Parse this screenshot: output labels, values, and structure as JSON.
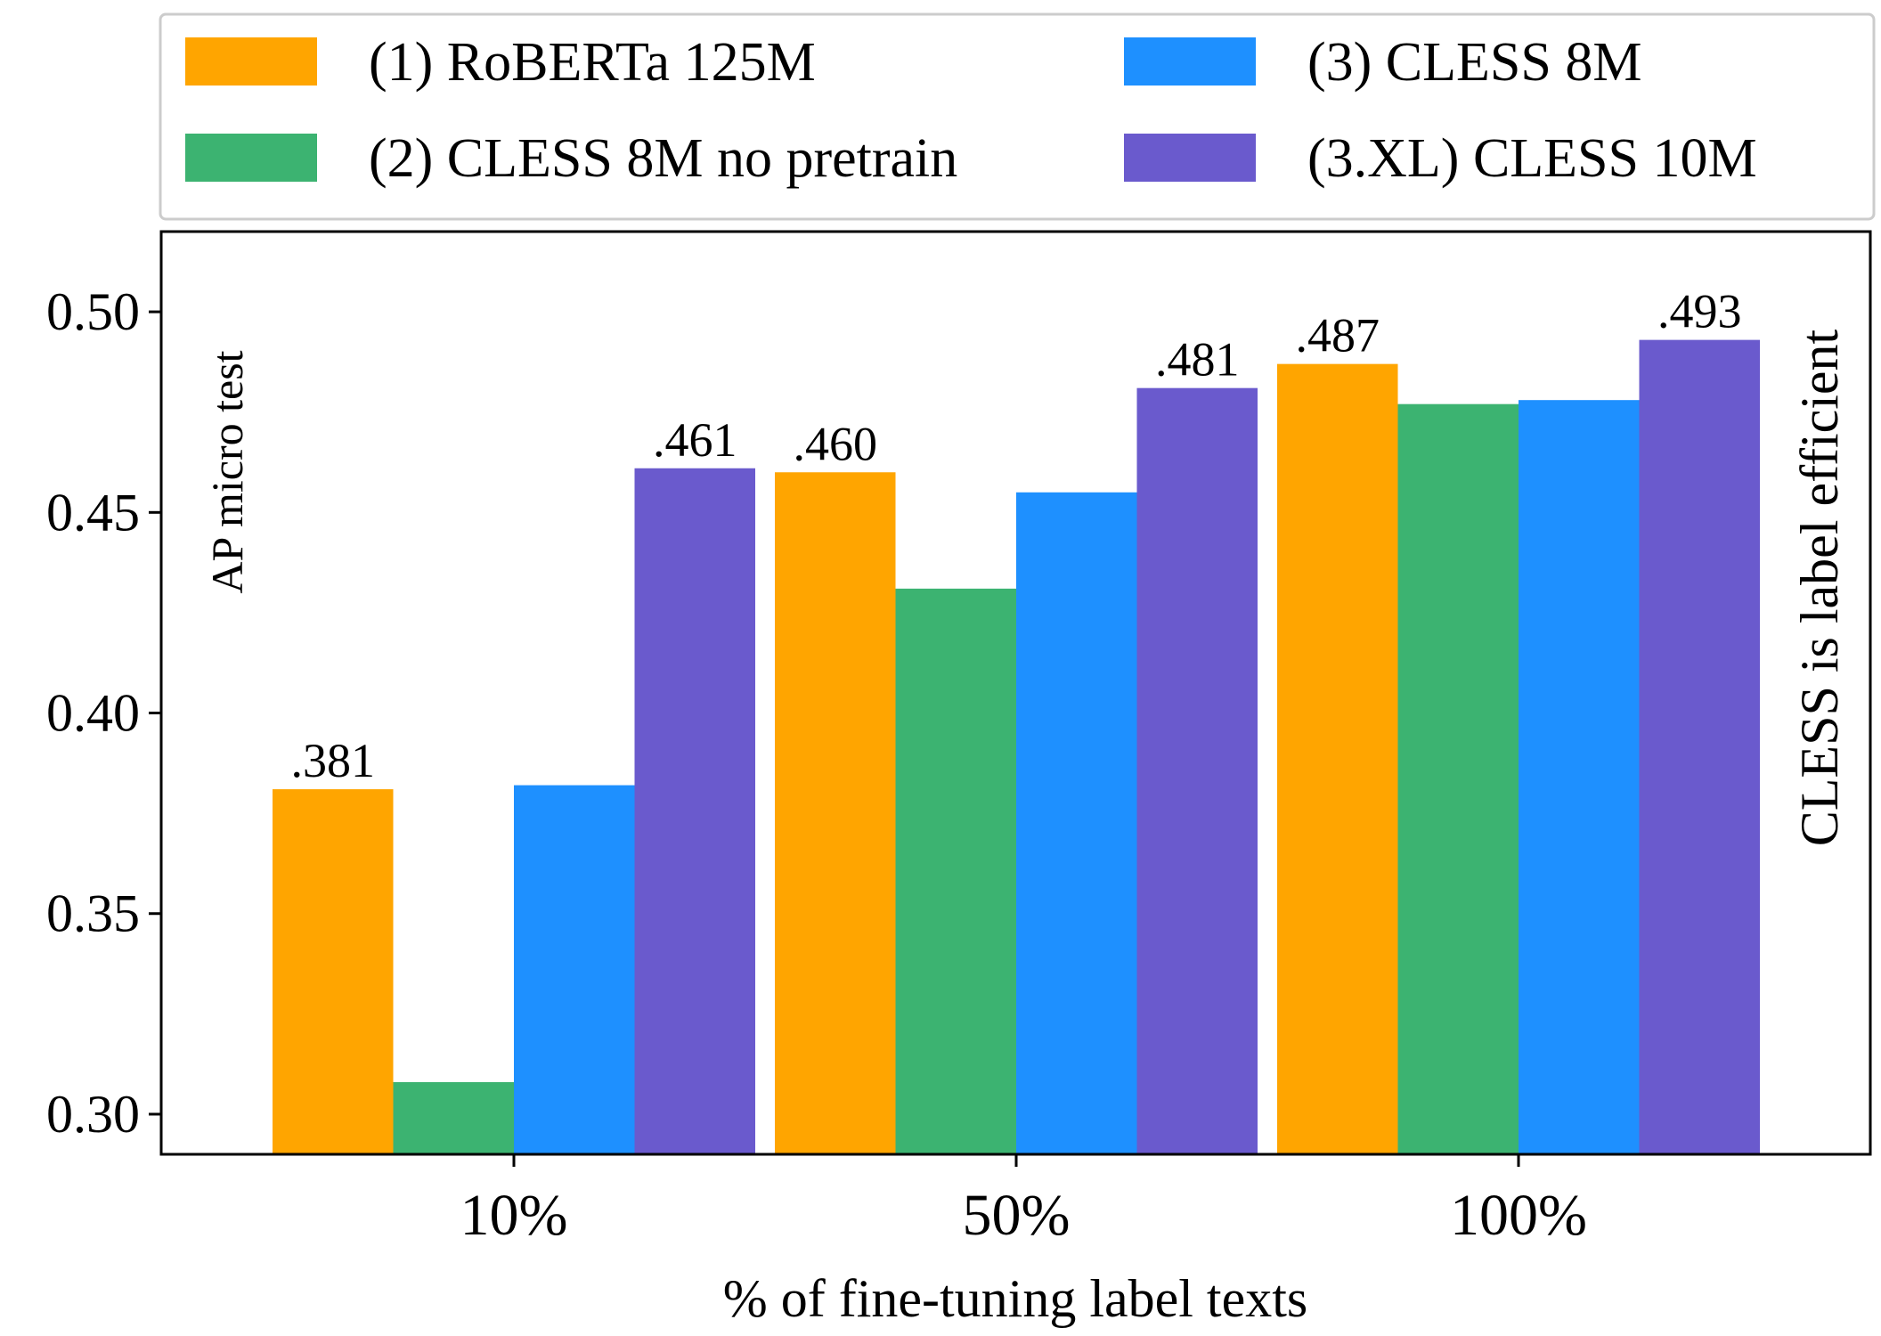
{
  "chart_data": {
    "type": "bar",
    "title": "",
    "xlabel": "% of fine-tuning label texts",
    "ylabel": "",
    "ylim": [
      0.29,
      0.52
    ],
    "yticks": [
      0.3,
      0.35,
      0.4,
      0.45,
      0.5
    ],
    "ytick_labels": [
      "0.30",
      "0.35",
      "0.40",
      "0.45",
      "0.50"
    ],
    "categories": [
      "10%",
      "50%",
      "100%"
    ],
    "series": [
      {
        "name": "(1) RoBERTa 125M",
        "color": "#ffa500",
        "values": [
          0.381,
          0.46,
          0.487
        ]
      },
      {
        "name": "(2) CLESS 8M no pretrain",
        "color": "#3cb371",
        "values": [
          0.308,
          0.431,
          0.477
        ]
      },
      {
        "name": "(3) CLESS 8M",
        "color": "#1e90ff",
        "values": [
          0.382,
          0.455,
          0.478
        ]
      },
      {
        "name": "(3.XL) CLESS 10M",
        "color": "#6a5acd",
        "values": [
          0.461,
          0.481,
          0.493
        ]
      }
    ],
    "data_labels": [
      {
        "category": "10%",
        "series": 0,
        "text": ".381"
      },
      {
        "category": "10%",
        "series": 3,
        "text": ".461"
      },
      {
        "category": "50%",
        "series": 0,
        "text": ".460"
      },
      {
        "category": "50%",
        "series": 3,
        "text": ".481"
      },
      {
        "category": "100%",
        "series": 0,
        "text": ".487"
      },
      {
        "category": "100%",
        "series": 3,
        "text": ".493"
      }
    ],
    "annotations": {
      "left": "AP micro test",
      "right": "CLESS is label efficient"
    },
    "legend": {
      "position": "top",
      "columns": 2
    },
    "grid": false
  }
}
